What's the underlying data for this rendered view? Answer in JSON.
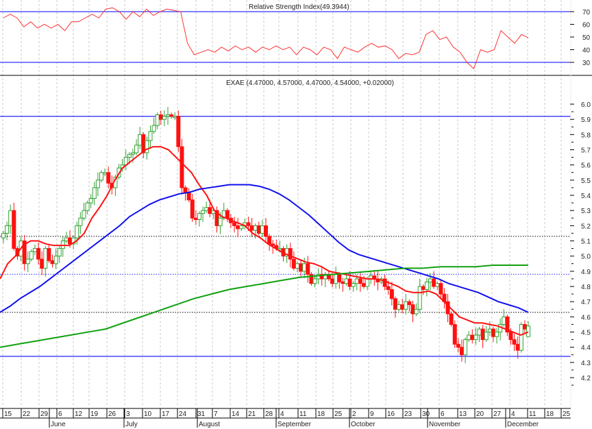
{
  "chart_data": [
    {
      "type": "line",
      "title": "Relative Strength Index(49.3944)",
      "ylim": [
        20,
        80
      ],
      "yticks": [
        70,
        60,
        50,
        40,
        30
      ],
      "reference_lines": [
        70,
        30
      ],
      "grid": "vertical dashed",
      "colors": {
        "rsi": "#ff3030",
        "reference": "#3030ff"
      },
      "series": [
        {
          "values": [
            65,
            68,
            65,
            58,
            62,
            57,
            60,
            57,
            60,
            55,
            62,
            62,
            65,
            68,
            65,
            72,
            73,
            70,
            64,
            70,
            66,
            72,
            67,
            70,
            72,
            71,
            70,
            45,
            36,
            38,
            40,
            38,
            42,
            39,
            43,
            40,
            42,
            38,
            42,
            40,
            43,
            40,
            42,
            36,
            42,
            40,
            36,
            42,
            40,
            33,
            42,
            40,
            38,
            42,
            45,
            42,
            43,
            40,
            33,
            37,
            36,
            38,
            52,
            55,
            48,
            50,
            42,
            38,
            30,
            25,
            40,
            38,
            40,
            55,
            50,
            45,
            52,
            49.4
          ]
        }
      ]
    },
    {
      "type": "candlestick",
      "title": "EXAE (4.47000, 4.57000, 4.47000, 4.54000, +0.02000)",
      "ylim": [
        4.1,
        6.1
      ],
      "yticks": [
        6.0,
        5.9,
        5.8,
        5.7,
        5.6,
        5.5,
        5.4,
        5.3,
        5.2,
        5.1,
        5.0,
        4.9,
        4.8,
        4.7,
        4.6,
        4.5,
        4.4,
        4.3,
        4.2
      ],
      "last_candle": {
        "open": 4.47,
        "high": 4.57,
        "low": 4.47,
        "close": 4.54,
        "change": 0.02
      },
      "closes": [
        5.15,
        5.2,
        5.3,
        5.05,
        5.0,
        5.1,
        4.95,
        4.98,
        5.03,
        5.05,
        4.98,
        4.92,
        5.05,
        4.97,
        4.95,
        5.0,
        5.05,
        5.1,
        5.12,
        5.08,
        5.12,
        5.2,
        5.25,
        5.3,
        5.35,
        5.38,
        5.45,
        5.5,
        5.55,
        5.55,
        5.48,
        5.45,
        5.52,
        5.58,
        5.6,
        5.65,
        5.67,
        5.68,
        5.73,
        5.8,
        5.68,
        5.76,
        5.82,
        5.86,
        5.93,
        5.9,
        5.92,
        5.93,
        5.92,
        5.92,
        5.72,
        5.45,
        5.42,
        5.37,
        5.25,
        5.24,
        5.28,
        5.3,
        5.32,
        5.28,
        5.3,
        5.2,
        5.25,
        5.3,
        5.25,
        5.22,
        5.2,
        5.18,
        5.2,
        5.22,
        5.2,
        5.17,
        5.2,
        5.15,
        5.2,
        5.13,
        5.08,
        5.07,
        5.05,
        5.05,
        5.0,
        5.05,
        4.98,
        4.92,
        4.95,
        4.9,
        4.95,
        4.88,
        4.82,
        4.85,
        4.88,
        4.85,
        4.88,
        4.85,
        4.82,
        4.88,
        4.83,
        4.82,
        4.85,
        4.8,
        4.82,
        4.85,
        4.82,
        4.8,
        4.85,
        4.87,
        4.85,
        4.83,
        4.85,
        4.8,
        4.78,
        4.72,
        4.65,
        4.68,
        4.65,
        4.7,
        4.68,
        4.62,
        4.65,
        4.8,
        4.78,
        4.83,
        4.85,
        4.8,
        4.82,
        4.75,
        4.7,
        4.62,
        4.55,
        4.42,
        4.4,
        4.35,
        4.45,
        4.48,
        4.45,
        4.48,
        4.52,
        4.45,
        4.5,
        4.52,
        4.47,
        4.5,
        4.55,
        4.6,
        4.5,
        4.45,
        4.42,
        4.38,
        4.55,
        4.52,
        4.54
      ],
      "moving_averages": [
        {
          "color": "#ff1010",
          "values": [
            4.85,
            4.95,
            5.0,
            5.07,
            5.1,
            5.1,
            5.08,
            5.07,
            5.07,
            5.07,
            5.1,
            5.15,
            5.25,
            5.32,
            5.4,
            5.5,
            5.58,
            5.62,
            5.66,
            5.7,
            5.72,
            5.72,
            5.7,
            5.65,
            5.6,
            5.55,
            5.47,
            5.4,
            5.3,
            5.26,
            5.24,
            5.22,
            5.2,
            5.15,
            5.12,
            5.08,
            5.05,
            5.02,
            5.0,
            4.98,
            4.96,
            4.95,
            4.93,
            4.9,
            4.89,
            4.88,
            4.87,
            4.86,
            4.85,
            4.85,
            4.84,
            4.82,
            4.8,
            4.77,
            4.76,
            4.76,
            4.77,
            4.75,
            4.7,
            4.65,
            4.6,
            4.58,
            4.56,
            4.56,
            4.55,
            4.54,
            4.52,
            4.5,
            4.48,
            4.5
          ]
        },
        {
          "color": "#1010ee",
          "values": [
            4.63,
            4.67,
            4.72,
            4.76,
            4.8,
            4.85,
            4.9,
            4.95,
            5.0,
            5.05,
            5.1,
            5.15,
            5.2,
            5.26,
            5.3,
            5.34,
            5.37,
            5.39,
            5.41,
            5.42,
            5.44,
            5.45,
            5.46,
            5.47,
            5.47,
            5.47,
            5.46,
            5.44,
            5.41,
            5.37,
            5.32,
            5.27,
            5.21,
            5.15,
            5.09,
            5.04,
            5.01,
            4.99,
            4.97,
            4.95,
            4.93,
            4.91,
            4.89,
            4.87,
            4.85,
            4.82,
            4.8,
            4.78,
            4.76,
            4.73,
            4.7,
            4.68,
            4.66,
            4.63
          ]
        },
        {
          "color": "#10a010",
          "values": [
            4.4,
            4.42,
            4.44,
            4.46,
            4.48,
            4.5,
            4.52,
            4.56,
            4.6,
            4.64,
            4.68,
            4.72,
            4.75,
            4.78,
            4.8,
            4.82,
            4.84,
            4.86,
            4.87,
            4.88,
            4.89,
            4.9,
            4.91,
            4.92,
            4.92,
            4.93,
            4.93,
            4.93,
            4.94,
            4.94,
            4.94
          ]
        }
      ],
      "level_lines": [
        {
          "value": 5.92,
          "style": "solid",
          "color": "#2020ff"
        },
        {
          "value": 5.13,
          "style": "dotted",
          "color": "#000000"
        },
        {
          "value": 4.88,
          "style": "dotted",
          "color": "#2020ff"
        },
        {
          "value": 4.63,
          "style": "dotted",
          "color": "#000000"
        },
        {
          "value": 4.34,
          "style": "solid",
          "color": "#2020ff"
        }
      ],
      "colors": {
        "up": "#30a030",
        "down": "#ff1010"
      }
    }
  ],
  "x_axis": {
    "day_ticks": [
      "15",
      "22",
      "29",
      "6",
      "12",
      "19",
      "26",
      "3",
      "10",
      "17",
      "24",
      "31",
      "7",
      "14",
      "21",
      "28",
      "4",
      "11",
      "18",
      "25",
      "2",
      "9",
      "16",
      "23",
      "30",
      "6",
      "13",
      "20",
      "27",
      "4",
      "11",
      "18",
      "25"
    ],
    "months": [
      "June",
      "July",
      "August",
      "September",
      "October",
      "November",
      "December"
    ]
  }
}
